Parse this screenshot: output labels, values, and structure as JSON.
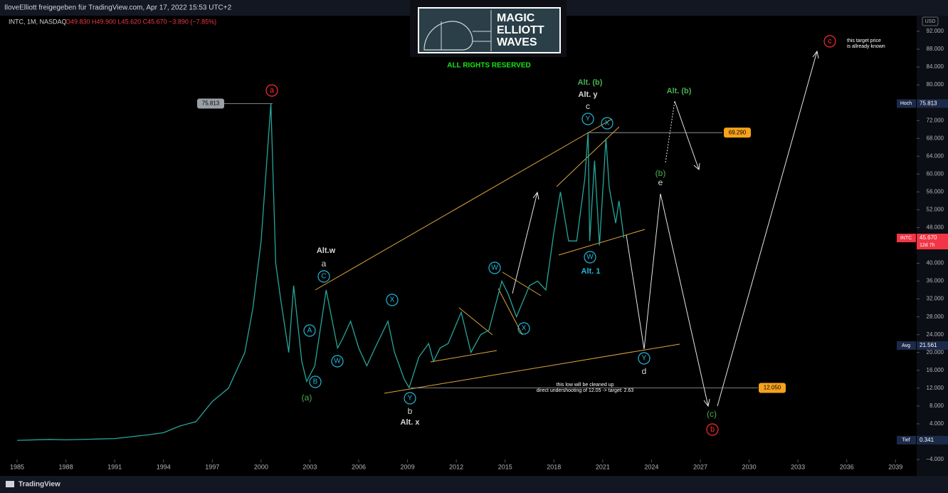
{
  "header": {
    "author_line": "IloveElliott freigegeben für TradingView.com, Apr 17, 2022 15:53 UTC+2",
    "symbol_line": "INTC, 1M, NASDAQ",
    "ohlc": "O49.830 H49.900 L45.620 C45.670 −3.890 (−7.85%)"
  },
  "logo": [
    "MAGIC",
    "ELLIOTT",
    "WAVES"
  ],
  "rights": "ALL RIGHTS RESERVED",
  "footer": "TradingView",
  "chart_data": {
    "type": "line",
    "color": "#26a69a",
    "currency": "USD",
    "x": [
      1985,
      1987,
      1988,
      1990,
      1991,
      1993,
      1994,
      1995,
      1996,
      1997,
      1998,
      1999,
      1999.5,
      2000.0,
      2000.6,
      2000.9,
      2001.2,
      2001.7,
      2002.0,
      2002.5,
      2002.8,
      2003.3,
      2004.0,
      2004.7,
      2005.0,
      2005.5,
      2006.0,
      2006.5,
      2007.0,
      2007.8,
      2008.2,
      2008.8,
      2009.1,
      2009.7,
      2010.3,
      2010.6,
      2011.0,
      2011.5,
      2012.3,
      2012.9,
      2013.5,
      2014.0,
      2014.8,
      2015.2,
      2015.7,
      2016.5,
      2017.0,
      2017.5,
      2018.0,
      2018.4,
      2018.9,
      2019.4,
      2019.9,
      2020.1,
      2020.2,
      2020.5,
      2020.8,
      2021.2,
      2021.4,
      2021.8,
      2022.0,
      2022.3
    ],
    "values": [
      0.3,
      0.5,
      0.4,
      0.6,
      0.7,
      1.5,
      2,
      3.5,
      4.5,
      9,
      12,
      20,
      30,
      45,
      75.8,
      40,
      32,
      20,
      35,
      18,
      13.5,
      17,
      34,
      21,
      23,
      27,
      21,
      17,
      21,
      27,
      20,
      14,
      12.1,
      19,
      22,
      18,
      21,
      22,
      29,
      20,
      24,
      25,
      36,
      33,
      28,
      35,
      36,
      34,
      47,
      56,
      45,
      45,
      59,
      69.3,
      45,
      63,
      44,
      68,
      57,
      49,
      54,
      45.67
    ],
    "xlim": [
      1983.95,
      2040.3
    ],
    "ylim": [
      -6.4,
      99.03
    ],
    "xticks": [
      1985,
      1988,
      1991,
      1994,
      1997,
      2000,
      2003,
      2006,
      2009,
      2012,
      2015,
      2018,
      2021,
      2024,
      2027,
      2030,
      2033,
      2036,
      2039
    ],
    "yticks": [
      {
        "value": -4,
        "label": "−4.000"
      },
      {
        "value": 0,
        "label": "0.000"
      },
      {
        "value": 4,
        "label": "4.000"
      },
      {
        "value": 8,
        "label": "8.000"
      },
      {
        "value": 12,
        "label": "12.000"
      },
      {
        "value": 16,
        "label": "16.000"
      },
      {
        "value": 20,
        "label": "20.000"
      },
      {
        "value": 24,
        "label": "24.000"
      },
      {
        "value": 28,
        "label": "28.000"
      },
      {
        "value": 32,
        "label": "32.000"
      },
      {
        "value": 36,
        "label": "36.000"
      },
      {
        "value": 40,
        "label": "40.000"
      },
      {
        "value": 44,
        "label": "44.000"
      },
      {
        "value": 48,
        "label": "48.000"
      },
      {
        "value": 52,
        "label": "52.000"
      },
      {
        "value": 56,
        "label": "56.000"
      },
      {
        "value": 60,
        "label": "60.000"
      },
      {
        "value": 64,
        "label": "64.000"
      },
      {
        "value": 68,
        "label": "68.000"
      },
      {
        "value": 72,
        "label": "72.000"
      },
      {
        "value": 76,
        "label": "76.000"
      },
      {
        "value": 80,
        "label": "80.000"
      },
      {
        "value": 84,
        "label": "84.000"
      },
      {
        "value": 88,
        "label": "88.000"
      },
      {
        "value": 92,
        "label": "92.000"
      }
    ],
    "grid": false,
    "levels": [
      75.813,
      {
        "value": 69.29,
        "label": "69.290"
      },
      {
        "value": 12.05,
        "label": "12.050"
      }
    ],
    "price_badges": [
      {
        "name": "Hoch",
        "value": 75.813
      },
      {
        "name": "INTC",
        "value": {
          "value": 45.67,
          "label": "45.670"
        },
        "note": "12d 7h"
      },
      {
        "name": "Avg",
        "value": 21.561
      },
      {
        "name": "Tief",
        "value": 0.341
      }
    ],
    "annotations": [
      "a",
      "Alt.w",
      "a",
      "C",
      "A",
      "B",
      "(a)",
      "W",
      "X",
      "Y",
      "b",
      "Alt. x",
      "W",
      "X",
      "Alt. (b)",
      "Alt. y",
      "c",
      "Y",
      "X",
      "W",
      "Alt. 1",
      "Alt. (b)",
      "(b)",
      "e",
      "Y",
      "d",
      "(c)",
      "b",
      "c",
      "this target price",
      "is allready known",
      "this low will be cleaned up",
      "direct undershooting of 12.05 -> target: 2.63"
    ]
  }
}
